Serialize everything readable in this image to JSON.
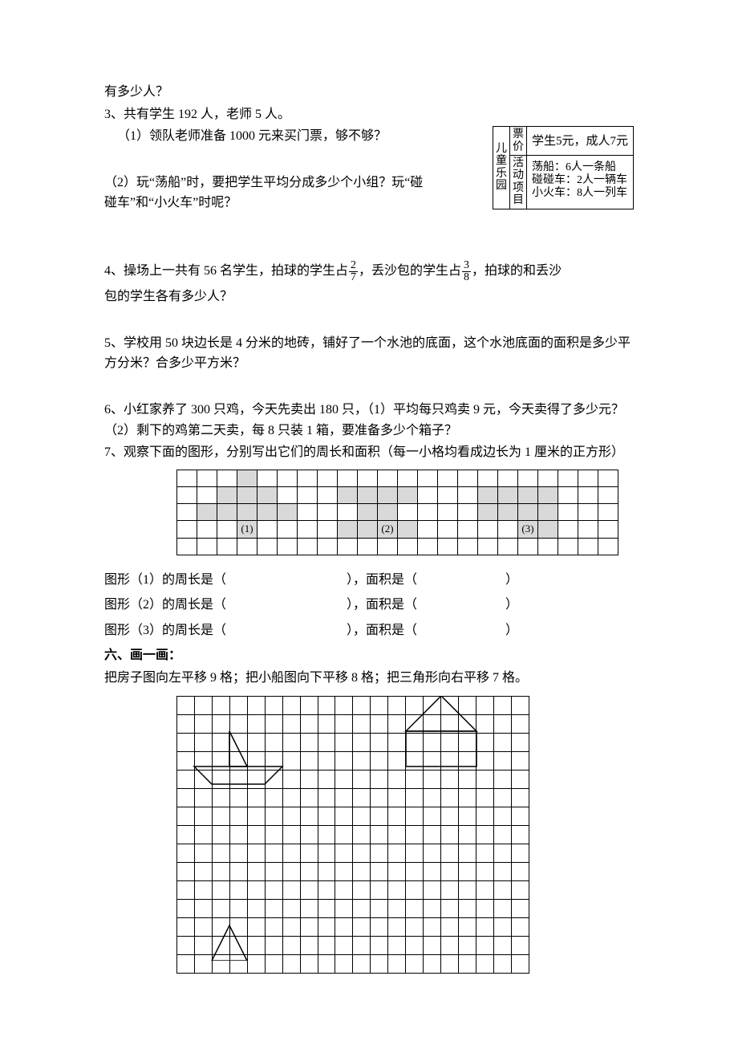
{
  "q_top": "有多少人？",
  "q3_line1": "3、共有学生 192 人，老师 5 人。",
  "q3_sub1": "（1）领队老师准备 1000 元来买门票，够不够？",
  "q3_sub2": "（2）玩“荡船”时，要把学生平均分成多少个小组？玩“碰碰车”和“小火车”时呢？",
  "box": {
    "left": "儿童乐园",
    "r1a": "票价",
    "r1b": "学生5元，成人7元",
    "r2a": "活动项目",
    "r2b": "荡船：6人一条船\n碰碰车：2人一辆车\n小火车：8人一列车"
  },
  "q4_a": "4、操场上一共有 56 名学生，拍球的学生占",
  "q4_frac1_num": "2",
  "q4_frac1_den": "7",
  "q4_b": "，丢沙包的学生占",
  "q4_frac2_num": "3",
  "q4_frac2_den": "8",
  "q4_c": "，拍球的和丢沙",
  "q4_d": "包的学生各有多少人？",
  "q5_a": "5、学校用 50 块边长是 4 分米的地砖，铺好了一个水池的底面，这个水池底面的面积是多少平方分米？合多少平方米？",
  "q6_a": "6、小红家养了 300 只鸡，今天先卖出 180 只，（1）平均每只鸡卖 9 元，今天卖得了多少元？（2）剩下的鸡第二天卖，每 8 只装 1 箱，要准备多少个箱子？",
  "q7_a": "7、观察下面的图形，分别写出它们的周长和面积（每一小格均看成边长为 1 厘米的正方形）",
  "grid7": {
    "rows": 5,
    "cols": 22,
    "shaded": [
      [
        0,
        3
      ],
      [
        1,
        2
      ],
      [
        1,
        3
      ],
      [
        1,
        4
      ],
      [
        1,
        8
      ],
      [
        1,
        9
      ],
      [
        1,
        10
      ],
      [
        1,
        11
      ],
      [
        1,
        15
      ],
      [
        1,
        16
      ],
      [
        1,
        17
      ],
      [
        1,
        18
      ],
      [
        2,
        1
      ],
      [
        2,
        2
      ],
      [
        2,
        3
      ],
      [
        2,
        4
      ],
      [
        2,
        5
      ],
      [
        2,
        9
      ],
      [
        2,
        10
      ],
      [
        2,
        15
      ],
      [
        2,
        16
      ],
      [
        2,
        17
      ],
      [
        2,
        18
      ],
      [
        3,
        3
      ],
      [
        3,
        8
      ],
      [
        3,
        9
      ],
      [
        3,
        10
      ],
      [
        3,
        11
      ],
      [
        3,
        17
      ],
      [
        3,
        18
      ]
    ],
    "labels": {
      "3_3": "(1)",
      "3_10": "(2)",
      "3_17": "(3)"
    }
  },
  "f1a": "图形（1）的周长是（",
  "f1b": "），面积是（",
  "f1c": "）",
  "f2a": "图形（2）的周长是（",
  "f2b": "），面积是（",
  "f2c": "）",
  "f3a": "图形（3）的周长是（",
  "f3b": "），面积是（",
  "f3c": "）",
  "sec6_title": "六、画一画：",
  "sec6_line": "把房子图向左平移 9 格；把小船图向下平移 8 格；把三角形向右平移 7 格。",
  "grid6": {
    "rows": 15,
    "cols": 20
  }
}
